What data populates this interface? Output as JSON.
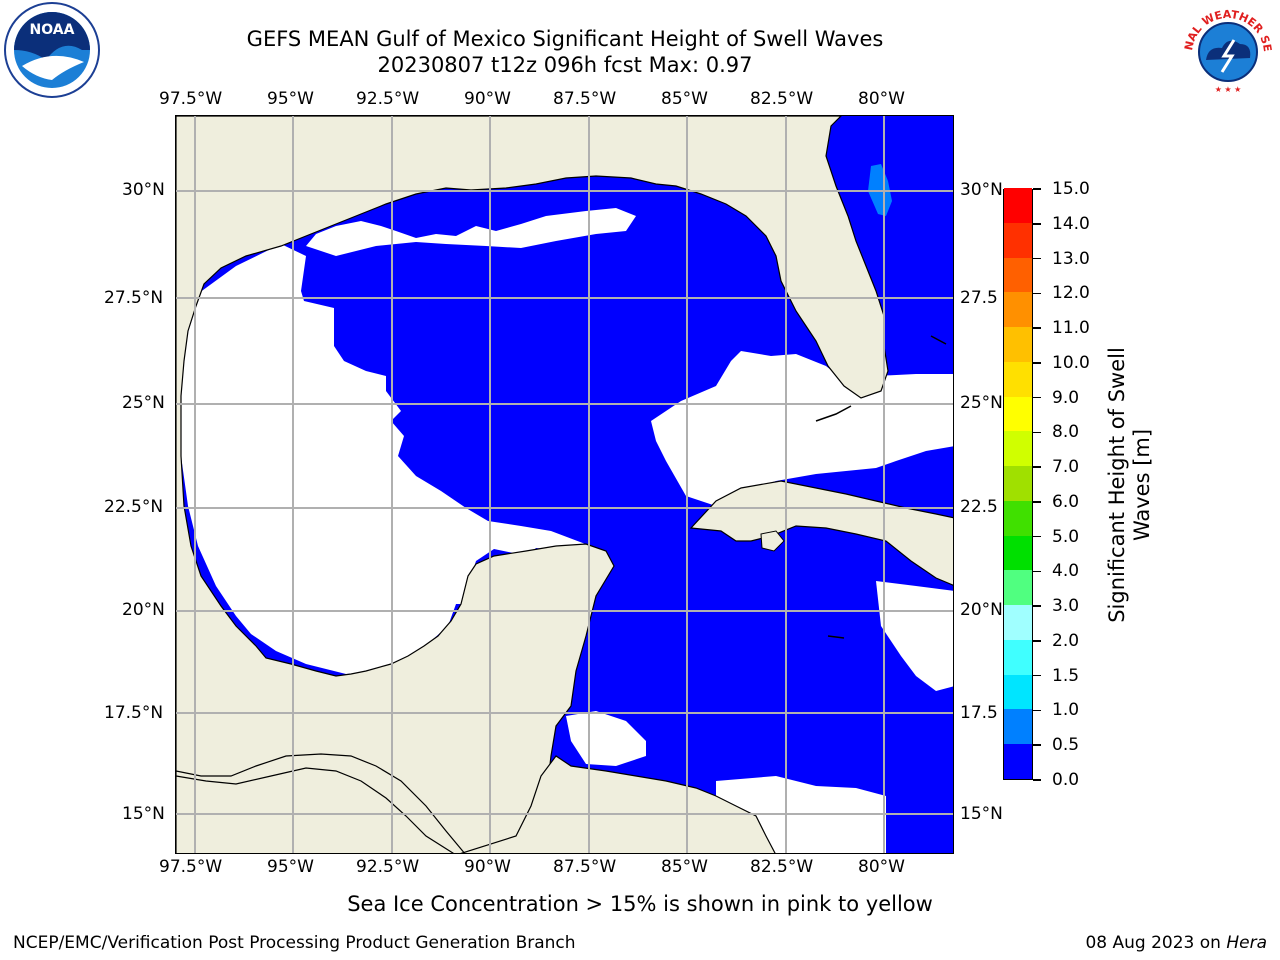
{
  "title_line1": "GEFS MEAN Gulf of Mexico Significant Height of Swell Waves",
  "title_line2": "20230807 t12z 096h fcst   Max: 0.97",
  "map": {
    "lon_labels": [
      "97.5°W",
      "95°W",
      "92.5°W",
      "90°W",
      "87.5°W",
      "85°W",
      "82.5°W",
      "80°W"
    ],
    "lat_labels_left": [
      "30°N",
      "27.5°N",
      "25°N",
      "22.5°N",
      "20°N",
      "17.5°N",
      "15°N"
    ],
    "lat_labels_right": [
      "30°N",
      "27.5",
      "25°N",
      "22.5",
      "20°N",
      "17.5",
      "15°N"
    ],
    "colors": {
      "land": "#efeedd",
      "low": "#0000ff",
      "mid": "#0080ff",
      "none": "#ffffff",
      "grid": "#b0b0b0"
    }
  },
  "colorbar": {
    "label": "Significant Height of Swell Waves [m]",
    "label_line1": "Significant Height of Swell",
    "label_line2": "Waves [m]",
    "ticks": [
      "0.0",
      "0.5",
      "1.0",
      "1.5",
      "2.0",
      "3.0",
      "4.0",
      "5.0",
      "6.0",
      "7.0",
      "8.0",
      "9.0",
      "10.0",
      "11.0",
      "12.0",
      "13.0",
      "14.0",
      "15.0"
    ],
    "colors": [
      "#0000ff",
      "#0080ff",
      "#00e5ff",
      "#40ffff",
      "#a0ffff",
      "#50ff80",
      "#00e000",
      "#40e000",
      "#a0e000",
      "#d0ff00",
      "#ffff00",
      "#ffe000",
      "#ffc000",
      "#ff9000",
      "#ff6000",
      "#ff3000",
      "#ff0000"
    ]
  },
  "note": "Sea Ice Concentration > 15% is shown in pink to yellow",
  "footer_left": "NCEP/EMC/Verification Post Processing Product Generation Branch",
  "footer_date": "08 Aug 2023 on",
  "footer_host": "Hera",
  "logos": {
    "noaa_text": "NOAA",
    "nws_text": "NATIONAL WEATHER SERVICE"
  }
}
